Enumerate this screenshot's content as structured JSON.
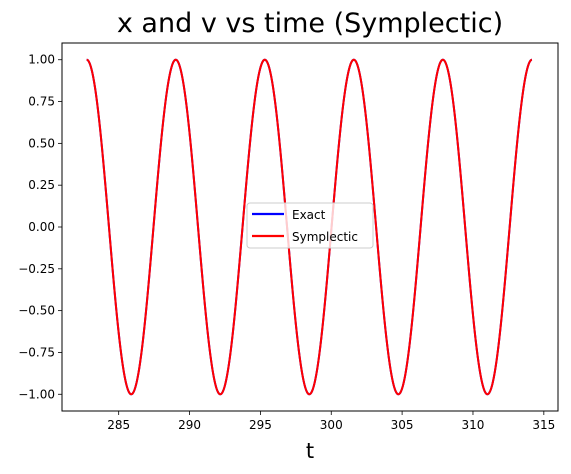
{
  "chart_data": {
    "type": "line",
    "title": "x and v vs time (Symplectic)",
    "xlabel": "t",
    "ylabel": "",
    "xlim": [
      281.0,
      316.0
    ],
    "ylim": [
      -1.1,
      1.1
    ],
    "xticks": [
      285,
      290,
      295,
      300,
      305,
      310,
      315
    ],
    "yticks": [
      -1.0,
      -0.75,
      -0.5,
      -0.25,
      0.0,
      0.25,
      0.5,
      0.75,
      1.0
    ],
    "xtick_labels": [
      "285",
      "290",
      "295",
      "300",
      "305",
      "310",
      "315"
    ],
    "ytick_labels": [
      "−1.00",
      "−0.75",
      "−0.50",
      "−0.25",
      "0.00",
      "0.25",
      "0.50",
      "0.75",
      "1.00"
    ],
    "grid": false,
    "legend_position": "center",
    "series": [
      {
        "name": "Exact",
        "color": "#0000ff",
        "function": "cos",
        "x_start": 282.74,
        "x_end": 314.16,
        "period": 6.2832
      },
      {
        "name": "Symplectic",
        "color": "#ff0000",
        "function": "cos",
        "x_start": 282.74,
        "x_end": 314.16,
        "period": 6.2832
      }
    ]
  }
}
